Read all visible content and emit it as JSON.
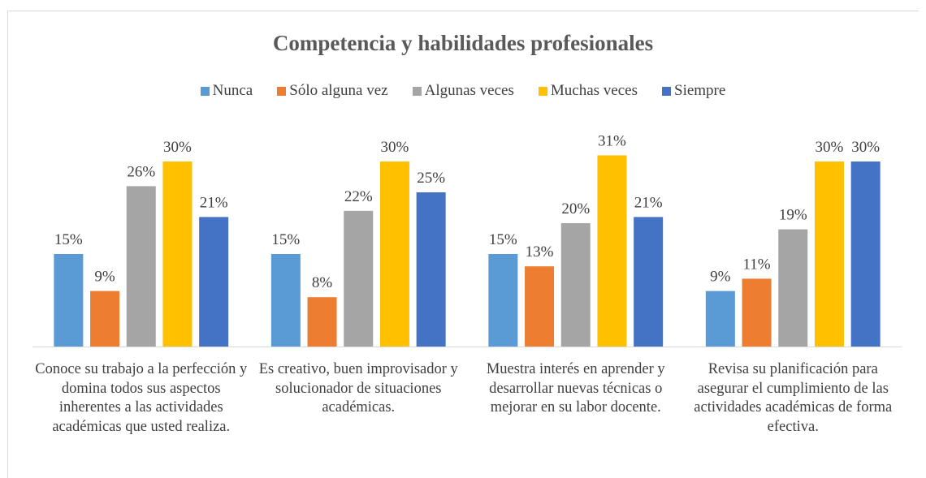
{
  "chart_data": {
    "type": "bar",
    "title": "Competencia y habilidades profesionales",
    "categories": [
      "Conoce su trabajo a la perfección y domina todos sus aspectos inherentes a las actividades académicas que usted realiza.",
      "Es creativo, buen improvisador y solucionador de situaciones académicas.",
      "Muestra interés en aprender y desarrollar nuevas técnicas o mejorar en su labor docente.",
      "Revisa su planificación para asegurar el cumplimiento de las actividades académicas de forma efectiva."
    ],
    "series": [
      {
        "name": "Nunca",
        "color": "#5b9bd5",
        "values": [
          15,
          15,
          15,
          9
        ],
        "value_labels": [
          "15%",
          "15%",
          "15%",
          "9%"
        ]
      },
      {
        "name": "Sólo alguna vez",
        "color": "#ed7d31",
        "values": [
          9,
          8,
          13,
          11
        ],
        "value_labels": [
          "9%",
          "8%",
          "13%",
          "11%"
        ]
      },
      {
        "name": "Algunas veces",
        "color": "#a5a5a5",
        "values": [
          26,
          22,
          20,
          19
        ],
        "value_labels": [
          "26%",
          "22%",
          "20%",
          "19%"
        ]
      },
      {
        "name": "Muchas veces",
        "color": "#ffc000",
        "values": [
          30,
          30,
          31,
          30
        ],
        "value_labels": [
          "30%",
          "30%",
          "31%",
          "30%"
        ]
      },
      {
        "name": "Siempre",
        "color": "#4472c4",
        "values": [
          21,
          25,
          21,
          30
        ],
        "value_labels": [
          "21%",
          "25%",
          "21%",
          "30%"
        ]
      }
    ],
    "ylim": [
      0,
      35
    ],
    "legend": "top"
  }
}
